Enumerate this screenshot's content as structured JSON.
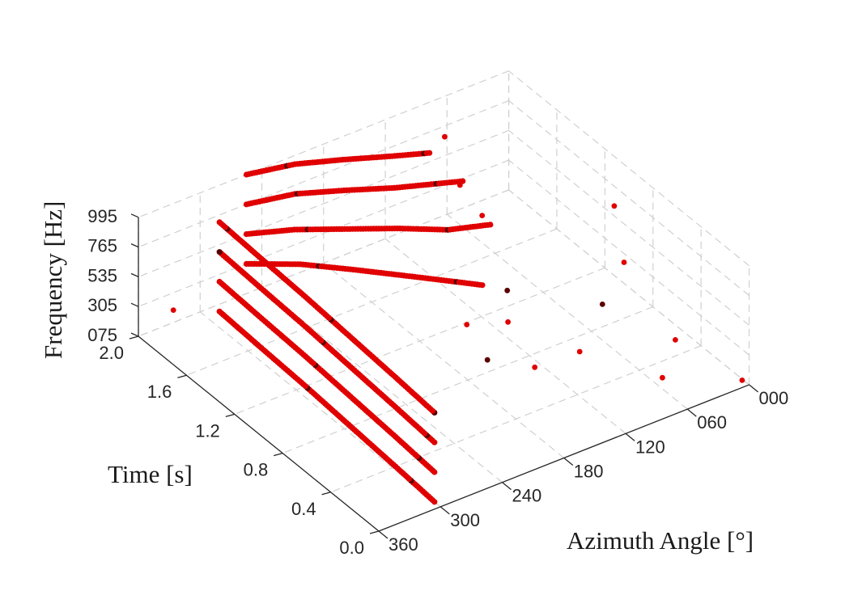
{
  "chart_data": {
    "type": "scatter",
    "title": "",
    "colors": {
      "points": "#e00000",
      "dense_points": "#5a0000",
      "grid": "#d0d0d0",
      "axes": "#262626"
    },
    "axes": {
      "azimuth": {
        "label": "Azimuth Angle [°]",
        "range": [
          0,
          360
        ],
        "ticks": [
          0,
          60,
          120,
          180,
          240,
          300,
          360
        ],
        "tick_labels": [
          "000",
          "060",
          "120",
          "180",
          "240",
          "300",
          "360"
        ]
      },
      "time": {
        "label": "Time [s]",
        "range": [
          0,
          2
        ],
        "ticks": [
          0,
          0.4,
          0.8,
          1.2,
          1.6,
          2.0
        ],
        "tick_labels": [
          "0.0",
          "0.4",
          "0.8",
          "1.2",
          "1.6",
          "2.0"
        ]
      },
      "frequency": {
        "label": "Frequency [Hz]",
        "range": [
          75,
          995
        ],
        "ticks": [
          75,
          305,
          535,
          765,
          995
        ],
        "tick_labels": [
          "075",
          "305",
          "535",
          "765",
          "995"
        ]
      }
    },
    "grid": true,
    "series": [
      {
        "frequency": 765,
        "points": [
          [
            300,
            0.05
          ],
          [
            297,
            0.4
          ],
          [
            294,
            0.8
          ],
          [
            291,
            1.2
          ],
          [
            289,
            1.6
          ],
          [
            287,
            1.95
          ]
        ]
      },
      {
        "frequency": 535,
        "points": [
          [
            300,
            0.05
          ],
          [
            297,
            0.4
          ],
          [
            294,
            0.8
          ],
          [
            291,
            1.2
          ],
          [
            289,
            1.6
          ],
          [
            287,
            1.95
          ]
        ]
      },
      {
        "frequency": 305,
        "points": [
          [
            300,
            0.05
          ],
          [
            297,
            0.4
          ],
          [
            294,
            0.8
          ],
          [
            291,
            1.2
          ],
          [
            289,
            1.6
          ],
          [
            287,
            1.95
          ]
        ]
      },
      {
        "frequency": 75,
        "points": [
          [
            300,
            0.05
          ],
          [
            297,
            0.4
          ],
          [
            294,
            0.8
          ],
          [
            291,
            1.2
          ],
          [
            289,
            1.6
          ],
          [
            287,
            1.95
          ]
        ]
      },
      {
        "frequency": 995,
        "points": [
          [
            255,
            2.0
          ],
          [
            215,
            1.94
          ],
          [
            180,
            1.84
          ],
          [
            145,
            1.73
          ],
          [
            118,
            1.65
          ]
        ]
      },
      {
        "frequency": 765,
        "points": [
          [
            255,
            2.0
          ],
          [
            215,
            1.94
          ],
          [
            180,
            1.83
          ],
          [
            145,
            1.71
          ],
          [
            95,
            1.57
          ]
        ]
      },
      {
        "frequency": 535,
        "points": [
          [
            255,
            2.0
          ],
          [
            220,
            1.9
          ],
          [
            185,
            1.76
          ],
          [
            150,
            1.62
          ],
          [
            120,
            1.48
          ],
          [
            88,
            1.4
          ]
        ]
      },
      {
        "frequency": 305,
        "points": [
          [
            255,
            2.0
          ],
          [
            220,
            1.85
          ],
          [
            190,
            1.67
          ],
          [
            160,
            1.48
          ],
          [
            135,
            1.32
          ],
          [
            118,
            1.21
          ]
        ]
      }
    ],
    "scattered_points": [
      [
        1,
        0.05,
        75
      ],
      [
        95,
        1.72,
        995
      ],
      [
        55,
        0.75,
        305
      ],
      [
        40,
        0.78,
        995
      ],
      [
        110,
        1.28,
        765
      ],
      [
        55,
        0.57,
        765
      ],
      [
        340,
        1.88,
        305
      ],
      [
        175,
        0.68,
        305
      ],
      [
        75,
        0.08,
        305
      ],
      [
        132,
        0.28,
        535
      ],
      [
        155,
        0.68,
        535
      ],
      [
        160,
        0.98,
        305
      ],
      [
        130,
        0.9,
        535
      ],
      [
        100,
        1.55,
        765
      ],
      [
        150,
        0.5,
        305
      ],
      [
        60,
        0.1,
        535
      ]
    ]
  }
}
